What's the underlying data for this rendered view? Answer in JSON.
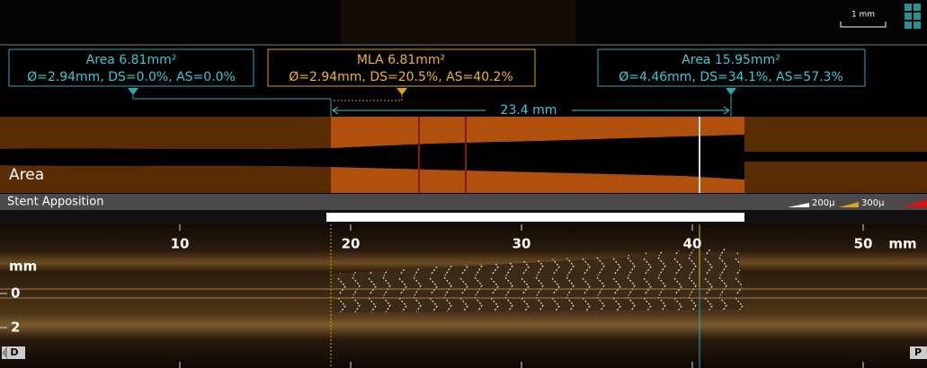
{
  "scale_bar": {
    "label": "1 mm"
  },
  "annotations": [
    {
      "title": "Area 6.81mm²",
      "detail": "Ø=2.94mm, DS=0.0%, AS=0.0%"
    },
    {
      "title": "MLA 6.81mm²",
      "detail": "Ø=2.94mm, DS=20.5%, AS=40.2%"
    },
    {
      "title": "Area 15.95mm²",
      "detail": "Ø=4.46mm, DS=34.1%, AS=57.3%"
    }
  ],
  "measurement": {
    "label": "23.4 mm"
  },
  "area_track": {
    "label": "Area"
  },
  "apposition_track": {
    "label": "Stent Apposition",
    "legend": [
      "200μ",
      "300μ"
    ]
  },
  "longitudinal_axis": {
    "ticks": [
      10,
      20,
      30,
      40,
      50
    ],
    "unit": "mm"
  },
  "depth_axis": {
    "unit": "mm",
    "ticks": [
      0,
      2
    ]
  },
  "direction": {
    "distal": "D",
    "proximal": "P"
  }
}
